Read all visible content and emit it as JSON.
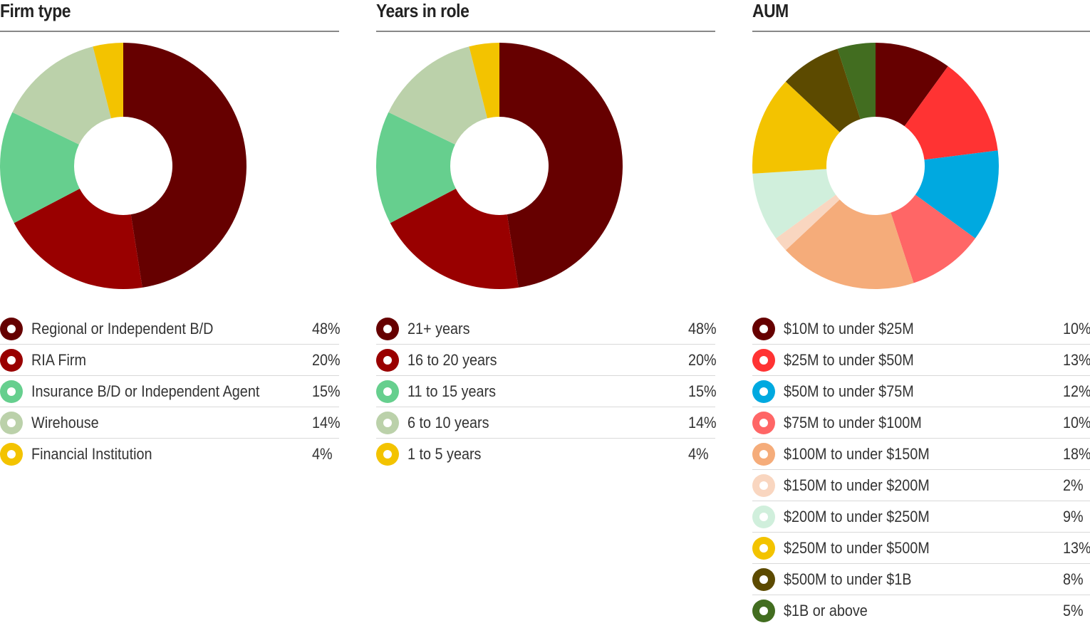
{
  "chart_data": [
    {
      "type": "pie",
      "title": "Firm type",
      "hole": true,
      "categories": [
        "Regional or Independent B/D",
        "RIA Firm",
        "Insurance B/D or Independent Agent",
        "Wirehouse",
        "Financial Institution"
      ],
      "values": [
        48,
        20,
        15,
        14,
        4
      ],
      "value_labels": [
        "48%",
        "20%",
        "15%",
        "14%",
        "4%"
      ],
      "colors": [
        "#660000",
        "#990000",
        "#66cf8e",
        "#bbd1aa",
        "#f3c300"
      ]
    },
    {
      "type": "pie",
      "title": "Years in role",
      "hole": true,
      "categories": [
        "21+ years",
        "16 to 20 years",
        "11 to 15 years",
        "6 to 10 years",
        "1 to 5 years"
      ],
      "values": [
        48,
        20,
        15,
        14,
        4
      ],
      "value_labels": [
        "48%",
        "20%",
        "15%",
        "14%",
        "4%"
      ],
      "colors": [
        "#660000",
        "#990000",
        "#66cf8e",
        "#bbd1aa",
        "#f3c300"
      ]
    },
    {
      "type": "pie",
      "title": "AUM",
      "hole": true,
      "categories": [
        "$10M to under $25M",
        "$25M to under $50M",
        "$50M to under $75M",
        "$75M to under $100M",
        "$100M to under $150M",
        "$150M to under $200M",
        "$200M to under $250M",
        "$250M to under $500M",
        "$500M to under $1B",
        "$1B or above"
      ],
      "values": [
        10,
        13,
        12,
        10,
        18,
        2,
        9,
        13,
        8,
        5
      ],
      "value_labels": [
        "10%",
        "13%",
        "12%",
        "10%",
        "18%",
        "2%",
        "9%",
        "13%",
        "8%",
        "5%"
      ],
      "colors": [
        "#660000",
        "#ff3333",
        "#00a9e0",
        "#ff6666",
        "#f5ac7a",
        "#f9d6c0",
        "#d0efdc",
        "#f3c300",
        "#5c4a00",
        "#426d20"
      ]
    }
  ]
}
